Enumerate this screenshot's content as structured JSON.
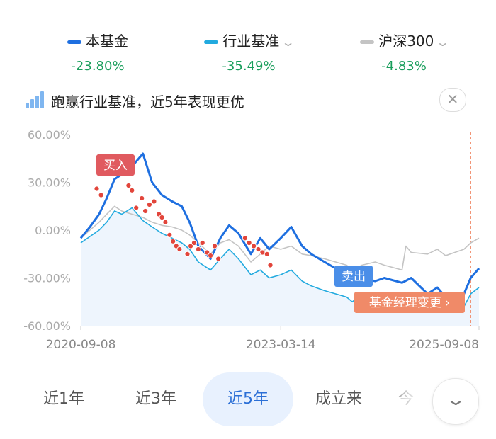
{
  "legend": [
    {
      "name": "本基金",
      "value": "-23.80%",
      "color": "#1e6fe0",
      "dropdown": false
    },
    {
      "name": "行业基准",
      "value": "-35.49%",
      "color": "#22aadf",
      "dropdown": true
    },
    {
      "name": "沪深300",
      "value": "-4.83%",
      "color": "#c4c4c4",
      "dropdown": true
    }
  ],
  "tip": {
    "text": "跑赢行业基准，近5年表现更优",
    "icon": "bar-chart-up-icon",
    "close": "✕"
  },
  "tabs": [
    {
      "label": "近1年",
      "active": false
    },
    {
      "label": "近3年",
      "active": false
    },
    {
      "label": "近5年",
      "active": true
    },
    {
      "label": "成立来",
      "active": false
    },
    {
      "label": "今",
      "active": false
    }
  ],
  "expand_icon": "chevron-down-icon",
  "chart_data": {
    "type": "line",
    "y_ticks": [
      "60.00%",
      "30.00%",
      "0.00%",
      "-30.00%",
      "-60.00%"
    ],
    "ylim": [
      -60,
      60
    ],
    "x_ticks": [
      "2020-09-08",
      "2023-03-14",
      "2025-09-08"
    ],
    "xlim": [
      "2020-09-08",
      "2025-09-08"
    ],
    "grid": false,
    "series": [
      {
        "name": "本基金",
        "color": "#1e6fe0",
        "x": [
          "2020-09-08",
          "2020-10-20",
          "2020-12-01",
          "2021-01-05",
          "2021-02-10",
          "2021-03-15",
          "2021-05-01",
          "2021-06-20",
          "2021-08-01",
          "2021-09-15",
          "2021-11-01",
          "2021-12-15",
          "2022-01-20",
          "2022-03-01",
          "2022-04-26",
          "2022-06-10",
          "2022-07-20",
          "2022-09-01",
          "2022-10-28",
          "2022-12-10",
          "2023-01-20",
          "2023-03-14",
          "2023-05-01",
          "2023-06-20",
          "2023-08-01",
          "2023-10-01",
          "2024-01-10",
          "2024-02-05",
          "2024-03-20",
          "2024-05-20",
          "2024-07-01",
          "2024-09-20",
          "2024-11-01",
          "2025-01-15",
          "2025-03-01",
          "2025-04-08",
          "2025-05-20",
          "2025-07-01",
          "2025-08-01",
          "2025-09-08"
        ],
        "y": [
          -5,
          2,
          10,
          20,
          32,
          35,
          40,
          48,
          30,
          22,
          18,
          15,
          5,
          -10,
          -18,
          -5,
          3,
          -2,
          -15,
          -5,
          -12,
          -5,
          2,
          -10,
          -15,
          -20,
          -28,
          -35,
          -30,
          -32,
          -30,
          -33,
          -30,
          -40,
          -36,
          -42,
          -40,
          -40,
          -30,
          -24
        ]
      },
      {
        "name": "行业基准",
        "color": "#22aadf",
        "x": [
          "2020-09-08",
          "2020-10-20",
          "2020-12-01",
          "2021-01-05",
          "2021-02-10",
          "2021-03-15",
          "2021-05-01",
          "2021-06-20",
          "2021-08-01",
          "2021-09-15",
          "2021-11-01",
          "2021-12-15",
          "2022-01-20",
          "2022-03-01",
          "2022-04-26",
          "2022-06-10",
          "2022-07-20",
          "2022-09-01",
          "2022-10-28",
          "2022-12-10",
          "2023-01-20",
          "2023-03-14",
          "2023-05-01",
          "2023-06-20",
          "2023-08-01",
          "2023-10-01",
          "2024-01-10",
          "2024-02-05",
          "2024-03-20",
          "2024-05-20",
          "2024-07-01",
          "2024-09-20",
          "2024-11-01",
          "2025-01-15",
          "2025-03-01",
          "2025-04-08",
          "2025-05-20",
          "2025-07-01",
          "2025-08-01",
          "2025-09-08"
        ],
        "y": [
          -8,
          -4,
          0,
          5,
          12,
          10,
          14,
          6,
          2,
          -2,
          -5,
          -8,
          -12,
          -20,
          -25,
          -18,
          -12,
          -18,
          -28,
          -25,
          -30,
          -28,
          -25,
          -32,
          -35,
          -38,
          -42,
          -45,
          -40,
          -42,
          -40,
          -42,
          -45,
          -48,
          -45,
          -50,
          -48,
          -48,
          -40,
          -36
        ]
      },
      {
        "name": "沪深300",
        "color": "#c4c4c4",
        "x": [
          "2020-09-08",
          "2020-10-20",
          "2020-12-01",
          "2021-01-05",
          "2021-02-10",
          "2021-03-15",
          "2021-05-01",
          "2021-06-20",
          "2021-08-01",
          "2021-09-15",
          "2021-11-01",
          "2021-12-15",
          "2022-01-20",
          "2022-03-01",
          "2022-04-26",
          "2022-06-10",
          "2022-07-20",
          "2022-09-01",
          "2022-10-28",
          "2022-12-10",
          "2023-01-20",
          "2023-03-14",
          "2023-05-01",
          "2023-06-20",
          "2023-08-01",
          "2023-10-01",
          "2024-01-10",
          "2024-02-05",
          "2024-03-20",
          "2024-05-20",
          "2024-07-01",
          "2024-09-20",
          "2024-10-08",
          "2024-11-01",
          "2025-01-15",
          "2025-03-01",
          "2025-04-08",
          "2025-05-20",
          "2025-07-01",
          "2025-08-01",
          "2025-09-08"
        ],
        "y": [
          -5,
          0,
          5,
          10,
          15,
          12,
          10,
          8,
          5,
          3,
          2,
          0,
          -3,
          -8,
          -15,
          -8,
          -6,
          -10,
          -20,
          -15,
          -10,
          -12,
          -10,
          -15,
          -16,
          -18,
          -22,
          -25,
          -22,
          -20,
          -22,
          -25,
          -10,
          -14,
          -15,
          -12,
          -16,
          -14,
          -12,
          -8,
          -5
        ]
      }
    ],
    "markers": [
      {
        "label": "买入",
        "x": "2020-12-01",
        "y": 27,
        "color": "#e05a5f"
      },
      {
        "label": "卖出",
        "x": "2024-01-10",
        "y": -30,
        "color": "#4a8ee8"
      },
      {
        "label": "基金经理变更 ›",
        "x": "2025-08-01",
        "y": -48,
        "color": "#f08a68"
      }
    ],
    "trade_points": {
      "color": "#e2453b",
      "x": [
        "2020-11-20",
        "2020-12-10",
        "2021-04-15",
        "2021-05-01",
        "2021-05-20",
        "2021-06-15",
        "2021-07-01",
        "2021-07-20",
        "2021-08-10",
        "2021-09-01",
        "2021-09-15",
        "2021-10-01",
        "2021-10-20",
        "2021-11-05",
        "2021-11-20",
        "2021-12-05",
        "2022-01-10",
        "2022-01-25",
        "2022-02-10",
        "2022-03-01",
        "2022-03-20",
        "2022-04-10",
        "2022-04-26",
        "2022-05-15",
        "2022-06-01",
        "2022-10-01",
        "2022-10-20",
        "2022-11-10",
        "2022-12-01",
        "2022-12-20",
        "2023-01-10",
        "2023-01-25"
      ],
      "y": [
        26,
        22,
        28,
        25,
        14,
        20,
        12,
        16,
        18,
        10,
        8,
        5,
        -3,
        -7,
        -10,
        -12,
        -15,
        -10,
        -8,
        -12,
        -8,
        -14,
        -16,
        -10,
        -18,
        -5,
        -8,
        -10,
        -12,
        -14,
        -15,
        -22
      ]
    },
    "vline_x": "2025-08-01"
  }
}
